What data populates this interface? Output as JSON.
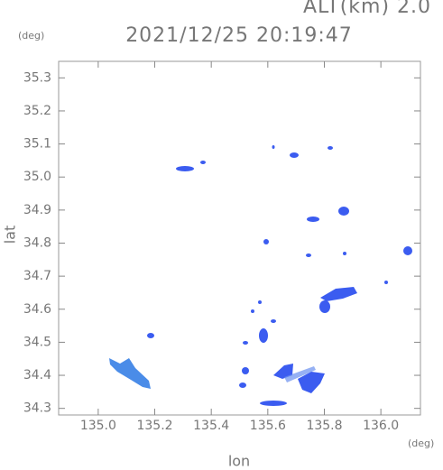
{
  "chart_data": {
    "type": "map",
    "title": "2021/12/25 20:19:47",
    "subtitle": "ALT(km) 2.0",
    "y_unit": "(deg)",
    "x_unit": "(deg)",
    "xlabel": "lon",
    "ylabel": "lat",
    "xlim": [
      134.86,
      136.14
    ],
    "ylim": [
      34.28,
      35.35
    ],
    "xticks": [
      {
        "value": 135.0,
        "label": "135.0"
      },
      135.2,
      135.4,
      135.6,
      135.8,
      {
        "value": 136.0,
        "label": "136.0"
      }
    ],
    "yticks": [
      {
        "value": 34.3,
        "label": "34.3"
      },
      34.4,
      34.5,
      34.6,
      34.7,
      34.8,
      34.9,
      {
        "value": 35.0,
        "label": "35.0"
      },
      35.1,
      35.2,
      35.3
    ]
  }
}
